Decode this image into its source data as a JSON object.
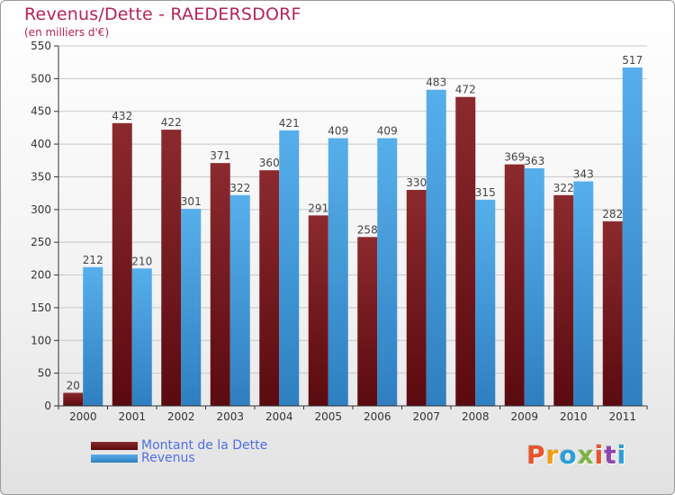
{
  "header": {
    "title": "Revenus/Dette - RAEDERSDORF",
    "subtitle": "(en milliers d'€)"
  },
  "legend": {
    "dette": "Montant de la Dette",
    "revenus": "Revenus"
  },
  "logo": {
    "text": "Proxiti",
    "colors": [
      "#e8542b",
      "#f39c12",
      "#2a9fd8",
      "#7cb342",
      "#e8542b",
      "#8e44ad",
      "#2a9fd8"
    ]
  },
  "colors": {
    "dette": "#7d1a1f",
    "revenus": "#4aa3e3",
    "title": "#b3245c",
    "legend_text": "#4f6fe0"
  },
  "chart_data": {
    "type": "bar",
    "title": "Revenus/Dette - RAEDERSDORF",
    "subtitle": "(en milliers d'€)",
    "categories": [
      "2000",
      "2001",
      "2002",
      "2003",
      "2004",
      "2005",
      "2006",
      "2007",
      "2008",
      "2009",
      "2010",
      "2011"
    ],
    "series": [
      {
        "name": "Montant de la Dette",
        "values": [
          20,
          432,
          422,
          371,
          360,
          291,
          258,
          330,
          472,
          369,
          322,
          282
        ]
      },
      {
        "name": "Revenus",
        "values": [
          212,
          210,
          301,
          322,
          421,
          409,
          409,
          483,
          315,
          363,
          343,
          517
        ]
      }
    ],
    "ylim": [
      0,
      550
    ],
    "yticks": [
      0,
      50,
      100,
      150,
      200,
      250,
      300,
      350,
      400,
      450,
      500,
      550
    ],
    "grid": true,
    "legend_position": "bottom-left"
  }
}
